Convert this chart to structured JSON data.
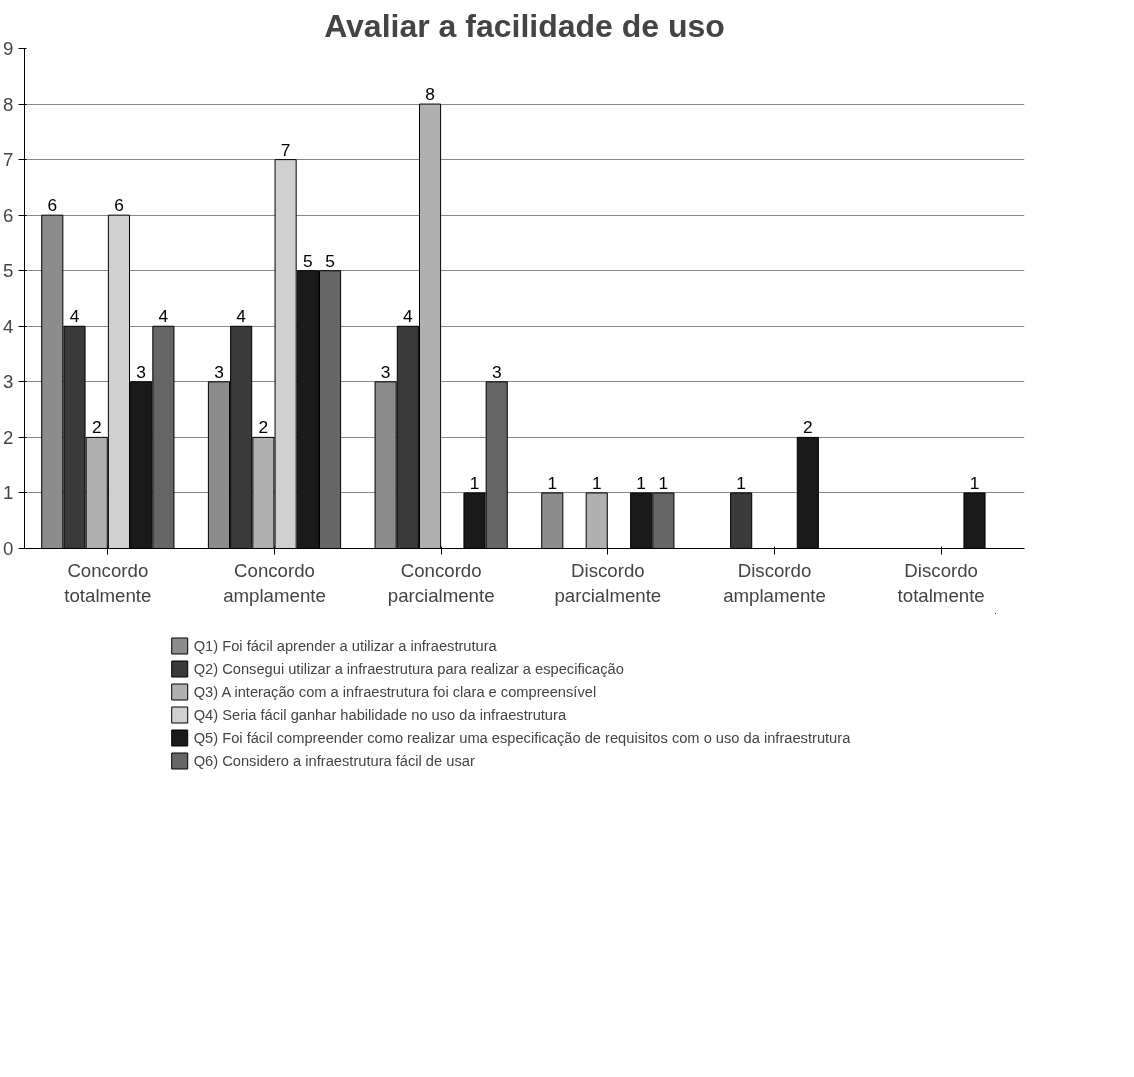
{
  "chart_data": {
    "type": "bar",
    "title": "Avaliar a facilidade de uso",
    "categories": [
      "Concordo totalmente",
      "Concordo amplamente",
      "Concordo parcialmente",
      "Discordo parcialmente",
      "Discordo amplamente",
      "Discordo totalmente"
    ],
    "series": [
      {
        "name": "Q1) Foi fácil aprender a utilizar a infraestrutura",
        "color": "#8c8c8c",
        "values": [
          6,
          3,
          3,
          1,
          null,
          null
        ]
      },
      {
        "name": "Q2) Consegui utilizar a infraestrutura para realizar a especificação",
        "color": "#3a3a3a",
        "values": [
          4,
          4,
          4,
          null,
          1,
          null
        ]
      },
      {
        "name": "Q3) A interação com a infraestrutura foi clara e compreensível",
        "color": "#b0b0b0",
        "values": [
          2,
          2,
          8,
          1,
          null,
          null
        ]
      },
      {
        "name": "Q4) Seria fácil ganhar habilidade no uso da infraestrutura",
        "color": "#d0d0d0",
        "values": [
          6,
          7,
          null,
          null,
          null,
          null
        ]
      },
      {
        "name": "Q5) Foi fácil compreender como realizar uma especificação de requisitos com o uso da infraestrutura",
        "color": "#1a1a1a",
        "values": [
          3,
          5,
          1,
          1,
          2,
          1
        ]
      },
      {
        "name": "Q6) Considero a infraestrutura fácil de usar",
        "color": "#666666",
        "values": [
          4,
          5,
          3,
          1,
          null,
          null
        ]
      }
    ],
    "ylim": [
      0,
      9
    ],
    "yticks": [
      0,
      1,
      2,
      3,
      4,
      5,
      6,
      7,
      8,
      9
    ],
    "grid": "y",
    "legend": "bottom",
    "data_labels": true
  }
}
